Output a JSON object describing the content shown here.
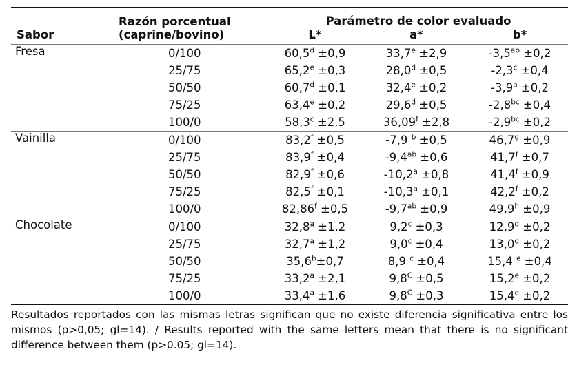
{
  "table": {
    "headers": {
      "razon_line1": "Razón porcentual",
      "razon_line2": "(caprine/bovino)",
      "parametro": "Parámetro de color evaluado",
      "sabor": "Sabor",
      "L": "L*",
      "a": "a*",
      "b": "b*"
    },
    "groups": [
      {
        "sabor": "Fresa",
        "rows": [
          {
            "razon": "0/100",
            "L": [
              "60,5",
              "d",
              " ±0,9"
            ],
            "a": [
              "33,7",
              "e",
              " ±2,9"
            ],
            "b": [
              "-3,5",
              "ab",
              " ±0,2"
            ]
          },
          {
            "razon": "25/75",
            "L": [
              "65,2",
              "e",
              " ±0,3"
            ],
            "a": [
              "28,0",
              "d",
              " ±0,5"
            ],
            "b": [
              "-2,3",
              "c",
              " ±0,4"
            ]
          },
          {
            "razon": "50/50",
            "L": [
              "60,7",
              "d",
              " ±0,1"
            ],
            "a": [
              "32,4",
              "e",
              " ±0,2"
            ],
            "b": [
              "-3,9",
              "a",
              " ±0,2"
            ]
          },
          {
            "razon": "75/25",
            "L": [
              "63,4",
              "e",
              " ±0,2"
            ],
            "a": [
              "29,6",
              "d",
              " ±0,5"
            ],
            "b": [
              "-2,8",
              "bc",
              " ±0,4"
            ]
          },
          {
            "razon": "100/0",
            "L": [
              "58,3",
              "c",
              " ±2,5"
            ],
            "a": [
              "36,09",
              "f",
              " ±2,8"
            ],
            "b": [
              "-2,9",
              "bc",
              " ±0,2"
            ]
          }
        ]
      },
      {
        "sabor": "Vainilla",
        "rows": [
          {
            "razon": "0/100",
            "L": [
              "83,2",
              "f",
              " ±0,5"
            ],
            "a": [
              "-7,9 ",
              "b",
              " ±0,5"
            ],
            "b": [
              "46,7",
              "g",
              " ±0,9"
            ]
          },
          {
            "razon": "25/75",
            "L": [
              "83,9",
              "f",
              " ±0,4"
            ],
            "a": [
              "-9,4",
              "ab",
              " ±0,6"
            ],
            "b": [
              "41,7",
              "f",
              " ±0,7"
            ]
          },
          {
            "razon": "50/50",
            "L": [
              "82,9",
              "f",
              " ±0,6"
            ],
            "a": [
              "-10,2",
              "a",
              " ±0,8"
            ],
            "b": [
              "41,4",
              "f",
              " ±0,9"
            ]
          },
          {
            "razon": "75/25",
            "L": [
              "82,5",
              "f",
              " ±0,1"
            ],
            "a": [
              "-10,3",
              "a",
              " ±0,1"
            ],
            "b": [
              "42,2",
              "f",
              " ±0,2"
            ]
          },
          {
            "razon": "100/0",
            "L": [
              "82,86",
              "f",
              " ±0,5"
            ],
            "a": [
              "-9,7",
              "ab",
              " ±0,9"
            ],
            "b": [
              "49,9",
              "h",
              " ±0,9"
            ]
          }
        ]
      },
      {
        "sabor": "Chocolate",
        "rows": [
          {
            "razon": "0/100",
            "L": [
              "32,8",
              "a",
              " ±1,2"
            ],
            "a": [
              "9,2",
              "c",
              " ±0,3"
            ],
            "b": [
              "12,9",
              "d",
              " ±0,2"
            ]
          },
          {
            "razon": "25/75",
            "L": [
              "32,7",
              "a",
              " ±1,2"
            ],
            "a": [
              "9,0",
              "c",
              " ±0,4"
            ],
            "b": [
              "13,0",
              "d",
              " ±0,2"
            ]
          },
          {
            "razon": "50/50",
            "L": [
              "35,6",
              "b",
              "±0,7"
            ],
            "a": [
              "8,9 ",
              "c",
              " ±0,4"
            ],
            "b": [
              "15,4 ",
              "e",
              " ±0,4"
            ]
          },
          {
            "razon": "75/25",
            "L": [
              "33,2",
              "a",
              " ±2,1"
            ],
            "a": [
              "9,8",
              "C",
              " ±0,5"
            ],
            "b": [
              "15,2",
              "e",
              " ±0,2"
            ]
          },
          {
            "razon": "100/0",
            "L": [
              "33,4",
              "a",
              " ±1,6"
            ],
            "a": [
              "9,8",
              "C",
              " ±0,3"
            ],
            "b": [
              "15,4",
              "e",
              " ±0,2"
            ]
          }
        ]
      }
    ]
  },
  "note": "Resultados reportados con las mismas letras significan que no existe diferencia significativa entre los mismos (p>0,05; gl=14). / Results reported with the same letters mean that there is no significant difference between them (p>0.05; gl=14)."
}
